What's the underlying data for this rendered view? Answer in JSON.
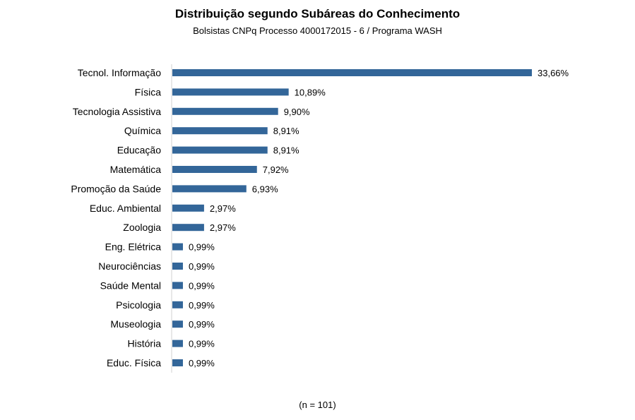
{
  "chart_data": {
    "type": "bar",
    "orientation": "horizontal",
    "title": "Distribuição segundo Subáreas do Conhecimento",
    "subtitle": "Bolsistas CNPq Processo 4000172015 - 6 / Programa WASH",
    "categories": [
      "Tecnol. Informação",
      "Física",
      "Tecnologia Assistiva",
      "Química",
      "Educação",
      "Matemática",
      "Promoção da Saúde",
      "Educ. Ambiental",
      "Zoologia",
      "Eng. Elétrica",
      "Neurociências",
      "Saúde Mental",
      "Psicologia",
      "Museologia",
      "História",
      "Educ. Física"
    ],
    "values": [
      33.66,
      10.89,
      9.9,
      8.91,
      8.91,
      7.92,
      6.93,
      2.97,
      2.97,
      0.99,
      0.99,
      0.99,
      0.99,
      0.99,
      0.99,
      0.99
    ],
    "value_labels": [
      "33,66%",
      "10,89%",
      "9,90%",
      "8,91%",
      "8,91%",
      "7,92%",
      "6,93%",
      "2,97%",
      "2,97%",
      "0,99%",
      "0,99%",
      "0,99%",
      "0,99%",
      "0,99%",
      "0,99%",
      "0,99%"
    ],
    "bar_color": "#336699",
    "grid": false,
    "note": "(n = 101)"
  }
}
